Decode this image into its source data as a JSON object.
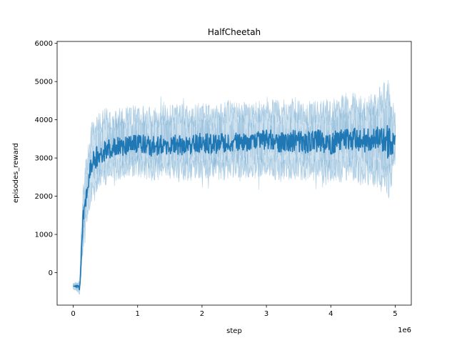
{
  "chart_data": {
    "type": "line",
    "title": "HalfCheetah",
    "xlabel": "step",
    "ylabel": "episodes_reward",
    "x_scale_label": "1e6",
    "xlim": [
      -250000,
      5250000
    ],
    "ylim": [
      -850,
      6050
    ],
    "x_ticks": [
      0,
      1000000,
      2000000,
      3000000,
      4000000,
      5000000
    ],
    "x_tick_labels": [
      "0",
      "1",
      "2",
      "3",
      "4",
      "5"
    ],
    "y_ticks": [
      0,
      1000,
      2000,
      3000,
      4000,
      5000,
      6000
    ],
    "y_tick_labels": [
      "0",
      "1000",
      "2000",
      "3000",
      "4000",
      "5000",
      "6000"
    ],
    "grid": false,
    "colors": {
      "line": "#1f77b4",
      "band": "#1f77b4"
    },
    "series": [
      {
        "x": [
          0,
          50000,
          100000,
          120000,
          150000,
          200000,
          250000,
          300000,
          350000,
          400000,
          500000,
          600000,
          700000,
          800000,
          900000,
          1000000,
          1200000,
          1400000,
          1600000,
          1800000,
          2000000,
          2200000,
          2400000,
          2600000,
          2800000,
          3000000,
          3200000,
          3400000,
          3600000,
          3800000,
          4000000,
          4200000,
          4400000,
          4600000,
          4800000,
          4900000,
          5000000
        ],
        "mean": [
          -350,
          -360,
          -400,
          300,
          1500,
          2000,
          2600,
          2900,
          3000,
          3100,
          3200,
          3250,
          3300,
          3300,
          3350,
          3400,
          3300,
          3350,
          3350,
          3350,
          3400,
          3350,
          3400,
          3450,
          3400,
          3500,
          3400,
          3450,
          3400,
          3450,
          3400,
          3500,
          3500,
          3450,
          3500,
          3400,
          3400
        ],
        "lower": [
          -420,
          -450,
          -550,
          0,
          800,
          1400,
          1900,
          2200,
          2400,
          2500,
          2600,
          2700,
          2700,
          2750,
          2800,
          2800,
          2700,
          2750,
          2750,
          2700,
          2800,
          2700,
          2750,
          2800,
          2750,
          2850,
          2700,
          2750,
          2700,
          2750,
          2600,
          2750,
          2700,
          2650,
          2600,
          2300,
          2900
        ],
        "upper": [
          -280,
          -270,
          -250,
          800,
          2100,
          2700,
          3300,
          3700,
          3800,
          3900,
          4000,
          4000,
          4050,
          4050,
          4100,
          4100,
          4050,
          4100,
          4150,
          4100,
          4150,
          4100,
          4200,
          4200,
          4150,
          4250,
          4200,
          4250,
          4150,
          4250,
          4200,
          4350,
          4350,
          4300,
          4500,
          4700,
          4000
        ]
      }
    ]
  }
}
